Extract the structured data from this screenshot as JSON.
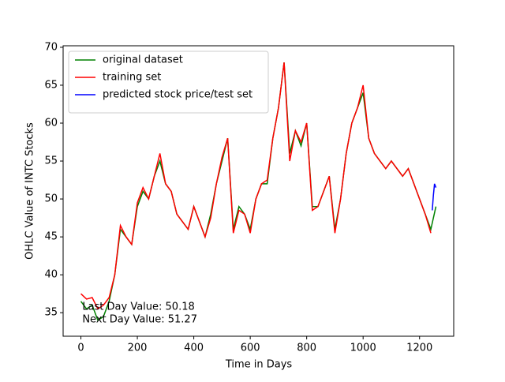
{
  "chart_data": {
    "type": "line",
    "xlabel": "Time in Days",
    "ylabel": "OHLC Value of INTC Stocks",
    "xlim": [
      -63,
      1321
    ],
    "ylim": [
      31.9,
      70.2
    ],
    "xticks": [
      0,
      200,
      400,
      600,
      800,
      1000,
      1200
    ],
    "yticks": [
      35,
      40,
      45,
      50,
      55,
      60,
      65,
      70
    ],
    "legend": "upper left",
    "series": [
      {
        "name": "original dataset",
        "color": "#008000",
        "x": [
          0,
          20,
          40,
          60,
          80,
          100,
          120,
          140,
          160,
          180,
          200,
          220,
          240,
          260,
          280,
          300,
          320,
          340,
          360,
          380,
          400,
          420,
          440,
          460,
          480,
          500,
          520,
          540,
          560,
          580,
          600,
          620,
          640,
          660,
          680,
          700,
          720,
          740,
          760,
          780,
          800,
          820,
          840,
          860,
          880,
          900,
          920,
          940,
          960,
          980,
          1000,
          1020,
          1040,
          1060,
          1080,
          1100,
          1120,
          1140,
          1160,
          1180,
          1200,
          1220,
          1240,
          1258
        ],
        "values": [
          36.5,
          35.5,
          36,
          34,
          34.5,
          36.5,
          40,
          46,
          45,
          44,
          49,
          51,
          50,
          53,
          55,
          52,
          51,
          48,
          47,
          46,
          49,
          47,
          45,
          48,
          52,
          55,
          58,
          46,
          49,
          48,
          46,
          50,
          52,
          52,
          58,
          62,
          68,
          56,
          59,
          57,
          60,
          49,
          49,
          51,
          53,
          46,
          50,
          56,
          60,
          62,
          64,
          58,
          56,
          55,
          54,
          55,
          54,
          53,
          54,
          52,
          50,
          48,
          46,
          49
        ]
      },
      {
        "name": "training set",
        "color": "#ff0000",
        "x": [
          0,
          20,
          40,
          60,
          80,
          100,
          120,
          140,
          160,
          180,
          200,
          220,
          240,
          260,
          280,
          300,
          320,
          340,
          360,
          380,
          400,
          420,
          440,
          460,
          480,
          500,
          520,
          540,
          560,
          580,
          600,
          620,
          640,
          660,
          680,
          700,
          720,
          740,
          760,
          780,
          800,
          820,
          840,
          860,
          880,
          900,
          920,
          940,
          960,
          980,
          1000,
          1020,
          1040,
          1060,
          1080,
          1100,
          1120,
          1140,
          1160,
          1180,
          1200,
          1220,
          1240
        ],
        "values": [
          37.5,
          36.8,
          37,
          35.5,
          36,
          37,
          40,
          46.5,
          45,
          44,
          49.5,
          51.5,
          50,
          53,
          56,
          52,
          51,
          48,
          47,
          46,
          49,
          47,
          45,
          47.5,
          52,
          55.5,
          58,
          45.5,
          48.5,
          48,
          45.5,
          50,
          52,
          52.5,
          58,
          62,
          68,
          55,
          59,
          57.5,
          60,
          48.5,
          49,
          51,
          53,
          45.5,
          50,
          56,
          60,
          62,
          65,
          58,
          56,
          55,
          54,
          55,
          54,
          53,
          54,
          52,
          50,
          48,
          45.5
        ]
      },
      {
        "name": "predicted stock price/test set",
        "color": "#0000ff",
        "x": [
          1245,
          1249,
          1253,
          1258
        ],
        "values": [
          48.5,
          50.5,
          52,
          51.5
        ]
      }
    ],
    "annotations": [
      "Last Day Value: 50.18",
      "Next Day Value: 51.27"
    ]
  }
}
